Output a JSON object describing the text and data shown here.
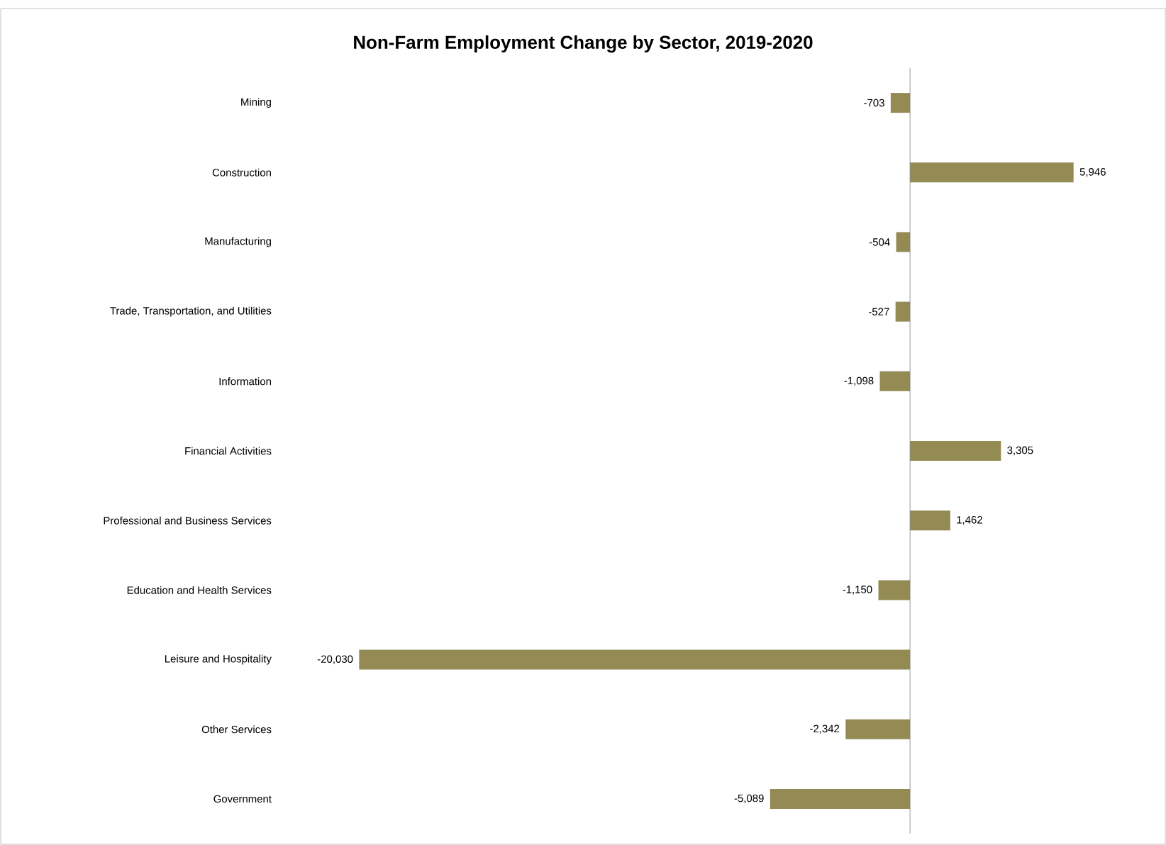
{
  "chart_data": {
    "type": "bar",
    "orientation": "horizontal",
    "title": "Non-Farm Employment Change by Sector, 2019-2020",
    "categories": [
      "Mining",
      "Construction",
      "Manufacturing",
      "Trade, Transportation, and Utilities",
      "Information",
      "Financial Activities",
      "Professional and Business Services",
      "Education and Health Services",
      "Leisure and Hospitality",
      "Other Services",
      "Government"
    ],
    "values": [
      -703,
      5946,
      -504,
      -527,
      -1098,
      3305,
      1462,
      -1150,
      -20030,
      -2342,
      -5089
    ],
    "value_labels": [
      "-703",
      "5,946",
      "-504",
      "-527",
      "-1,098",
      "3,305",
      "1,462",
      "-1,150",
      "-20,030",
      "-2,342",
      "-5,089"
    ],
    "color": "#948a54",
    "tick_labels": "y"
  }
}
